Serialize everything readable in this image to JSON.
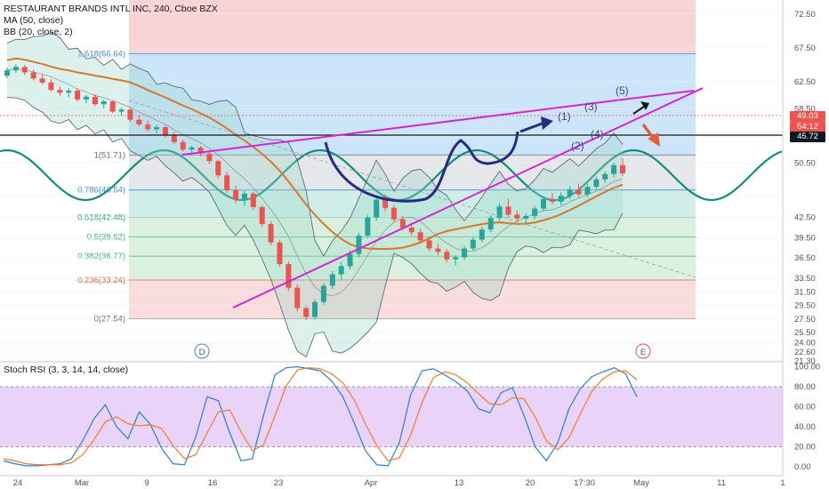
{
  "legend": {
    "main_title": "RESTAURANT BRANDS INTL INC, 240, Cboe BZX",
    "ma": "MA (50, close)",
    "bb": "BB (20, close, 2)",
    "rsi": "Stoch RSI (3, 3, 14, 14, close)"
  },
  "price_tags": {
    "last": "49.03",
    "countdown": "54:12",
    "hline": "45.72"
  },
  "colors": {
    "fib_top_red": "#f6c9c9",
    "fib_blue": "#c4e1f9",
    "fib_gray": "#e2e3e8",
    "fib_teal": "#c6ebe3",
    "fib_green": "#d5efd9",
    "fib_bottom_red": "#f8d6d6",
    "candle_up": "#26a69a",
    "candle_down": "#ef5350",
    "ma": "#d47a2a",
    "bb": "#4f5b6e",
    "sine": "#0e8f7a",
    "trend": "#d526d5",
    "cup": "#262b85",
    "rsi_k": "#2b7fd4",
    "rsi_d": "#f57c2a",
    "rsi_band": "#e3c8f7"
  },
  "chart_data": [
    {
      "type": "candlestick",
      "title": "RESTAURANT BRANDS INTL INC, 240, Cboe BZX",
      "ylim": [
        20.0,
        73.5
      ],
      "y_ticks": [
        "72.50",
        "67.50",
        "62.50",
        "58.50",
        "54.50",
        "50.50",
        "45.72",
        "42.50",
        "39.50",
        "36.50",
        "33.50",
        "31.50",
        "29.50",
        "27.50",
        "25.50",
        "24.00",
        "22.60",
        "21.30"
      ],
      "x_ticks": [
        "24",
        "Mar",
        "9",
        "16",
        "23",
        "Apr",
        "13",
        "20",
        "17:30",
        "May",
        "11",
        "1"
      ],
      "fib_levels": [
        {
          "label": "1.618(66.64)",
          "value": 66.64
        },
        {
          "label": "1(51.71)",
          "value": 51.71
        },
        {
          "label": "0.786(46.54)",
          "value": 46.54
        },
        {
          "label": "0.618(42.48)",
          "value": 42.48
        },
        {
          "label": "0.5(39.62)",
          "value": 39.62
        },
        {
          "label": "0.382(36.77)",
          "value": 36.77
        },
        {
          "label": "0.236(33.24)",
          "value": 33.24
        },
        {
          "label": "0(27.54)",
          "value": 27.54
        }
      ],
      "last_price": 49.03,
      "horizontal_line": 45.72,
      "wave_labels": [
        "(1)",
        "(2)",
        "(3)",
        "(4)",
        "(5)"
      ],
      "event_markers": [
        "D",
        "E"
      ],
      "candles": [
        [
          63.4,
          64.6,
          63.0,
          64.2
        ],
        [
          64.2,
          65.1,
          63.8,
          64.7
        ],
        [
          64.7,
          65.0,
          63.5,
          63.9
        ],
        [
          63.9,
          64.3,
          62.7,
          63.0
        ],
        [
          63.0,
          63.6,
          62.1,
          62.4
        ],
        [
          62.4,
          62.9,
          61.0,
          61.3
        ],
        [
          61.3,
          61.8,
          60.4,
          60.9
        ],
        [
          60.9,
          61.6,
          60.2,
          61.2
        ],
        [
          61.2,
          61.5,
          59.6,
          59.9
        ],
        [
          59.9,
          60.6,
          59.3,
          60.3
        ],
        [
          60.3,
          60.7,
          58.9,
          59.2
        ],
        [
          59.2,
          59.9,
          58.6,
          59.6
        ],
        [
          59.6,
          59.8,
          57.9,
          58.1
        ],
        [
          58.1,
          58.7,
          57.5,
          58.4
        ],
        [
          58.4,
          58.6,
          56.6,
          56.9
        ],
        [
          56.9,
          57.5,
          55.9,
          56.2
        ],
        [
          56.2,
          56.8,
          55.2,
          55.5
        ],
        [
          55.5,
          56.2,
          54.9,
          55.8
        ],
        [
          55.8,
          56.0,
          54.3,
          54.6
        ],
        [
          54.6,
          55.1,
          53.3,
          53.6
        ],
        [
          53.6,
          54.0,
          52.2,
          52.5
        ],
        [
          52.5,
          53.1,
          51.6,
          52.8
        ],
        [
          52.8,
          53.0,
          51.5,
          51.9
        ],
        [
          51.9,
          52.3,
          50.4,
          50.8
        ],
        [
          50.8,
          51.0,
          48.3,
          48.7
        ],
        [
          48.7,
          49.2,
          46.1,
          46.5
        ],
        [
          46.5,
          47.2,
          44.6,
          45.1
        ],
        [
          45.1,
          46.4,
          44.2,
          46.0
        ],
        [
          46.0,
          46.3,
          43.6,
          44.0
        ],
        [
          44.0,
          44.3,
          41.1,
          41.5
        ],
        [
          41.5,
          41.9,
          38.4,
          38.8
        ],
        [
          38.8,
          39.2,
          35.2,
          35.6
        ],
        [
          35.6,
          36.0,
          31.6,
          32.1
        ],
        [
          32.1,
          32.6,
          28.6,
          29.1
        ],
        [
          29.1,
          29.5,
          27.3,
          27.8
        ],
        [
          27.8,
          30.4,
          27.4,
          30.0
        ],
        [
          30.0,
          32.8,
          29.5,
          32.4
        ],
        [
          32.4,
          34.6,
          31.9,
          34.1
        ],
        [
          34.1,
          35.9,
          33.3,
          35.3
        ],
        [
          35.3,
          37.6,
          34.8,
          37.1
        ],
        [
          37.1,
          40.2,
          36.6,
          39.8
        ],
        [
          39.8,
          42.9,
          39.4,
          42.5
        ],
        [
          42.5,
          45.6,
          42.0,
          45.1
        ],
        [
          45.1,
          45.9,
          43.4,
          43.9
        ],
        [
          43.9,
          44.3,
          41.8,
          42.2
        ],
        [
          42.2,
          42.7,
          40.6,
          41.0
        ],
        [
          41.0,
          41.7,
          39.8,
          40.3
        ],
        [
          40.3,
          40.8,
          38.6,
          39.1
        ],
        [
          39.1,
          39.6,
          37.5,
          37.9
        ],
        [
          37.9,
          38.6,
          36.9,
          37.4
        ],
        [
          37.4,
          37.8,
          35.9,
          36.3
        ],
        [
          36.3,
          36.9,
          35.4,
          36.6
        ],
        [
          36.6,
          38.3,
          36.2,
          37.9
        ],
        [
          37.9,
          39.6,
          37.5,
          39.2
        ],
        [
          39.2,
          41.1,
          38.8,
          40.7
        ],
        [
          40.7,
          42.8,
          40.3,
          42.4
        ],
        [
          42.4,
          44.6,
          42.0,
          44.1
        ],
        [
          44.1,
          45.3,
          42.5,
          42.9
        ],
        [
          42.9,
          43.5,
          41.8,
          42.3
        ],
        [
          42.3,
          43.1,
          41.6,
          42.7
        ],
        [
          42.7,
          44.2,
          42.2,
          43.8
        ],
        [
          43.8,
          45.6,
          43.4,
          45.2
        ],
        [
          45.2,
          46.1,
          44.4,
          44.8
        ],
        [
          44.8,
          46.2,
          44.3,
          45.7
        ],
        [
          45.7,
          47.1,
          45.2,
          46.6
        ],
        [
          46.6,
          47.5,
          45.5,
          45.9
        ],
        [
          45.9,
          47.4,
          45.5,
          47.0
        ],
        [
          47.0,
          48.5,
          46.5,
          48.1
        ],
        [
          48.1,
          49.3,
          47.6,
          48.9
        ],
        [
          48.9,
          50.6,
          48.4,
          50.2
        ],
        [
          50.2,
          51.2,
          48.6,
          49.0
        ]
      ]
    },
    {
      "type": "line",
      "title": "Stoch RSI (3, 3, 14, 14, close)",
      "ylim": [
        -5,
        105
      ],
      "y_ticks": [
        "100.00",
        "80.00",
        "60.00",
        "40.00",
        "20.00",
        "0.00"
      ],
      "bands": [
        20,
        80
      ],
      "series": [
        {
          "name": "K",
          "values": [
            6,
            3,
            1,
            1,
            2,
            3,
            8,
            26,
            48,
            62,
            40,
            28,
            55,
            42,
            18,
            3,
            2,
            30,
            70,
            66,
            34,
            6,
            8,
            52,
            92,
            99,
            100,
            98,
            96,
            86,
            70,
            44,
            16,
            2,
            1,
            24,
            72,
            96,
            98,
            92,
            85,
            76,
            58,
            54,
            74,
            79,
            52,
            20,
            6,
            24,
            58,
            78,
            90,
            95,
            99,
            93,
            70
          ]
        },
        {
          "name": "D",
          "values": [
            8,
            6,
            3,
            2,
            2,
            2,
            4,
            12,
            27,
            45,
            50,
            43,
            41,
            42,
            38,
            21,
            8,
            12,
            34,
            55,
            57,
            35,
            16,
            22,
            51,
            81,
            97,
            99,
            98,
            93,
            84,
            67,
            43,
            21,
            6,
            9,
            32,
            64,
            89,
            95,
            92,
            84,
            73,
            63,
            62,
            69,
            68,
            50,
            26,
            17,
            29,
            53,
            75,
            88,
            95,
            96,
            87
          ]
        }
      ]
    }
  ]
}
